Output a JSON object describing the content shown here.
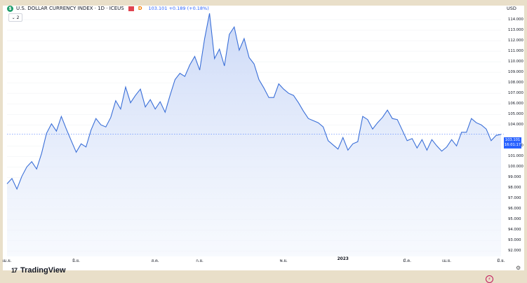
{
  "legend": {
    "symbol_letter": "$",
    "title": "U.S. DOLLAR CURRENCY INDEX · 1D · ICEUS",
    "interval_badge": "D",
    "ohlc": "103.101 +0.189 (+0.18%)"
  },
  "indicator_toggle": {
    "chevron": "⌄",
    "count": "2"
  },
  "currency": "USD",
  "price_tag": {
    "value": "103.101",
    "countdown": "16:01:17"
  },
  "logo": {
    "mark": "17",
    "text": "TradingView"
  },
  "icons": {
    "replay": "replay-icon",
    "settings": "gear-icon",
    "flag": "flag-icon"
  },
  "colors": {
    "line": "#3a6fd8",
    "fill_top": "#c9d7f7",
    "fill_bottom": "#f2f6fd",
    "price_tag": "#2962ff",
    "grid": "#eef0f3"
  },
  "chart_data": {
    "type": "area",
    "title": "U.S. DOLLAR CURRENCY INDEX · 1D · ICEUS",
    "ylim": [
      91.5,
      115.2
    ],
    "y_ticks": [
      "114.000",
      "113.000",
      "112.000",
      "111.000",
      "110.000",
      "109.000",
      "108.000",
      "107.000",
      "106.000",
      "105.000",
      "104.000",
      "102.000",
      "101.000",
      "100.000",
      "99.000",
      "98.000",
      "97.000",
      "96.000",
      "95.000",
      "94.000",
      "93.000",
      "92.000"
    ],
    "x_tick_labels": [
      {
        "label": "เม.ย.",
        "x": 0.0
      },
      {
        "label": "มิ.ย.",
        "x": 0.14
      },
      {
        "label": "ส.ค.",
        "x": 0.3
      },
      {
        "label": "ก.ย.",
        "x": 0.39
      },
      {
        "label": "พ.ย.",
        "x": 0.56
      },
      {
        "label": "2023",
        "x": 0.68,
        "bold": true
      },
      {
        "label": "มี.ค.",
        "x": 0.81
      },
      {
        "label": "เม.ย.",
        "x": 0.89
      },
      {
        "label": "มิ.ย.",
        "x": 1.0
      }
    ],
    "last_value": 103.101,
    "series": [
      {
        "x": [
          0.0,
          0.01,
          0.02,
          0.03,
          0.04,
          0.05,
          0.06,
          0.07,
          0.08,
          0.09,
          0.1,
          0.11,
          0.12,
          0.13,
          0.14,
          0.15,
          0.16,
          0.17,
          0.18,
          0.19,
          0.2,
          0.21,
          0.22,
          0.23,
          0.24,
          0.25,
          0.26,
          0.27,
          0.28,
          0.29,
          0.3,
          0.31,
          0.32,
          0.33,
          0.34,
          0.35,
          0.36,
          0.37,
          0.38,
          0.39,
          0.4,
          0.41,
          0.42,
          0.43,
          0.44,
          0.45,
          0.46,
          0.47,
          0.48,
          0.49,
          0.5,
          0.51,
          0.52,
          0.53,
          0.54,
          0.55,
          0.56,
          0.57,
          0.58,
          0.59,
          0.6,
          0.61,
          0.62,
          0.63,
          0.64,
          0.65,
          0.66,
          0.67,
          0.68,
          0.69,
          0.7,
          0.71,
          0.72,
          0.73,
          0.74,
          0.75,
          0.76,
          0.77,
          0.78,
          0.79,
          0.8,
          0.81,
          0.82,
          0.83,
          0.84,
          0.85,
          0.86,
          0.87,
          0.88,
          0.89,
          0.9,
          0.91,
          0.92,
          0.93,
          0.94,
          0.95,
          0.96,
          0.97,
          0.98,
          0.99,
          1.0
        ],
        "y": [
          98.4,
          98.9,
          97.9,
          99.1,
          100.0,
          100.5,
          99.8,
          101.3,
          103.2,
          104.1,
          103.4,
          104.8,
          103.6,
          102.5,
          101.4,
          102.2,
          101.9,
          103.5,
          104.6,
          104.0,
          103.8,
          104.7,
          106.3,
          105.5,
          107.6,
          106.1,
          106.8,
          107.4,
          105.7,
          106.4,
          105.5,
          106.2,
          105.2,
          106.8,
          108.3,
          108.9,
          108.6,
          109.7,
          110.5,
          109.2,
          112.2,
          114.6,
          110.3,
          111.2,
          109.6,
          112.6,
          113.3,
          111.1,
          112.2,
          110.4,
          109.8,
          108.3,
          107.5,
          106.6,
          106.6,
          107.9,
          107.4,
          107.0,
          106.8,
          106.1,
          105.3,
          104.6,
          104.4,
          104.2,
          103.8,
          102.5,
          102.1,
          101.7,
          102.8,
          101.6,
          102.2,
          102.4,
          104.8,
          104.5,
          103.6,
          104.2,
          104.7,
          105.4,
          104.6,
          104.5,
          103.5,
          102.5,
          102.7,
          101.8,
          102.6,
          101.6,
          102.6,
          102.0,
          101.5,
          101.9,
          102.6,
          102.0,
          103.3,
          103.3,
          104.6,
          104.2,
          104.0,
          103.6,
          102.5,
          103.0,
          103.1
        ]
      }
    ]
  }
}
